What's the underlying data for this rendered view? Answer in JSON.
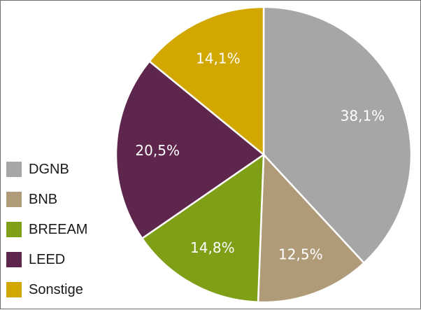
{
  "chart_data": {
    "type": "pie",
    "title": "",
    "start_angle_deg": 0,
    "direction": "clockwise",
    "legend_position": "bottom-left",
    "slices": [
      {
        "name": "DGNB",
        "value": 38.1,
        "label": "38,1%",
        "color": "#a6a6a6"
      },
      {
        "name": "BNB",
        "value": 12.5,
        "label": "12,5%",
        "color": "#b09b79"
      },
      {
        "name": "BREEAM",
        "value": 14.8,
        "label": "14,8%",
        "color": "#7f9f17"
      },
      {
        "name": "LEED",
        "value": 20.5,
        "label": "20,5%",
        "color": "#5f264d"
      },
      {
        "name": "Sonstige",
        "value": 14.1,
        "label": "14,1%",
        "color": "#d1a700"
      }
    ]
  }
}
